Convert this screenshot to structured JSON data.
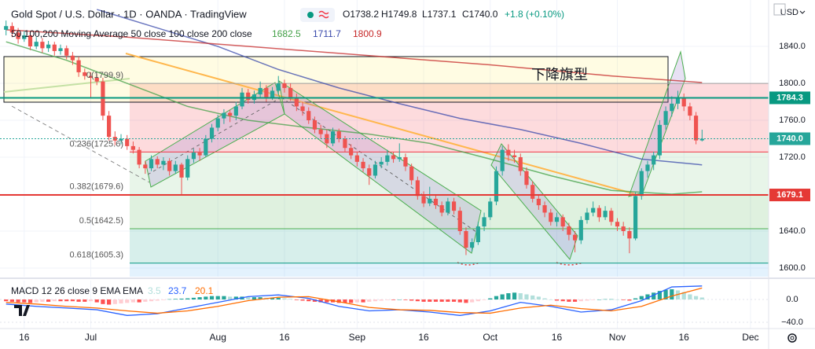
{
  "chart_data": [
    {
      "type": "candlestick",
      "title": "Gold Spot / U.S. Dollar · 1D · OANDA · TradingView",
      "ohlc_labels": [
        "O1738.2",
        "H1749.8",
        "L1737.1",
        "C1740.0"
      ],
      "change": "+1.8 (+0.10%)",
      "currency": "USD",
      "annotation": "下降旗型",
      "up_color": "#26a69a",
      "down_color": "#ef5350",
      "xlim": [
        -1,
        126
      ],
      "xticks": [
        {
          "value": 3,
          "label": "16"
        },
        {
          "value": 14,
          "label": "Jul"
        },
        {
          "value": 35,
          "label": "Aug"
        },
        {
          "value": 46,
          "label": "16"
        },
        {
          "value": 58,
          "label": "Sep"
        },
        {
          "value": 69,
          "label": "16"
        },
        {
          "value": 80,
          "label": "Oct"
        },
        {
          "value": 91,
          "label": "16"
        },
        {
          "value": 101,
          "label": "Nov"
        },
        {
          "value": 112,
          "label": "16"
        },
        {
          "value": 123,
          "label": "Dec"
        }
      ],
      "ylim": [
        1590.6,
        1886
      ],
      "yticks": [
        {
          "value": 1600,
          "label": "1600.0"
        },
        {
          "value": 1640,
          "label": "1640.0"
        },
        {
          "value": 1680,
          "label": "1680.0"
        },
        {
          "value": 1720,
          "label": "1720.0"
        },
        {
          "value": 1760,
          "label": "1760.0"
        },
        {
          "value": 1800,
          "label": "1800.0"
        },
        {
          "value": 1840,
          "label": "1840.0"
        }
      ],
      "grid": true,
      "candles": [
        [
          1858,
          1868,
          1852,
          1862
        ],
        [
          1862,
          1866,
          1850,
          1855
        ],
        [
          1855,
          1860,
          1843,
          1848
        ],
        [
          1848,
          1857,
          1845,
          1852
        ],
        [
          1852,
          1855,
          1836,
          1840
        ],
        [
          1840,
          1850,
          1837,
          1845
        ],
        [
          1845,
          1849,
          1833,
          1838
        ],
        [
          1838,
          1846,
          1834,
          1842
        ],
        [
          1842,
          1845,
          1830,
          1835
        ],
        [
          1835,
          1842,
          1831,
          1838
        ],
        [
          1838,
          1841,
          1826,
          1830
        ],
        [
          1830,
          1834,
          1820,
          1825
        ],
        [
          1825,
          1829,
          1807,
          1812
        ],
        [
          1812,
          1816,
          1804,
          1808
        ],
        [
          1808,
          1812,
          1785,
          1806
        ],
        [
          1806,
          1810,
          1798,
          1802
        ],
        [
          1802,
          1806,
          1760,
          1765
        ],
        [
          1765,
          1770,
          1738,
          1742
        ],
        [
          1742,
          1748,
          1733,
          1738
        ],
        [
          1738,
          1745,
          1734,
          1740
        ],
        [
          1740,
          1744,
          1728,
          1732
        ],
        [
          1732,
          1737,
          1724,
          1728
        ],
        [
          1728,
          1731,
          1708,
          1712
        ],
        [
          1712,
          1716,
          1702,
          1708
        ],
        [
          1708,
          1722,
          1705,
          1718
        ],
        [
          1718,
          1721,
          1708,
          1712
        ],
        [
          1712,
          1720,
          1706,
          1716
        ],
        [
          1716,
          1719,
          1700,
          1705
        ],
        [
          1705,
          1716,
          1702,
          1712
        ],
        [
          1712,
          1714,
          1680,
          1698
        ],
        [
          1698,
          1722,
          1695,
          1718
        ],
        [
          1718,
          1729,
          1714,
          1725
        ],
        [
          1725,
          1730,
          1716,
          1722
        ],
        [
          1722,
          1744,
          1720,
          1740
        ],
        [
          1740,
          1756,
          1736,
          1752
        ],
        [
          1752,
          1766,
          1748,
          1762
        ],
        [
          1762,
          1772,
          1756,
          1768
        ],
        [
          1768,
          1771,
          1758,
          1765
        ],
        [
          1765,
          1780,
          1760,
          1775
        ],
        [
          1775,
          1795,
          1772,
          1790
        ],
        [
          1790,
          1794,
          1778,
          1782
        ],
        [
          1782,
          1792,
          1778,
          1788
        ],
        [
          1788,
          1802,
          1784,
          1795
        ],
        [
          1795,
          1798,
          1780,
          1785
        ],
        [
          1785,
          1796,
          1782,
          1792
        ],
        [
          1792,
          1808,
          1788,
          1800
        ],
        [
          1800,
          1804,
          1790,
          1795
        ],
        [
          1795,
          1800,
          1781,
          1785
        ],
        [
          1785,
          1789,
          1770,
          1775
        ],
        [
          1775,
          1780,
          1765,
          1770
        ],
        [
          1770,
          1774,
          1756,
          1760
        ],
        [
          1760,
          1764,
          1746,
          1750
        ],
        [
          1750,
          1755,
          1740,
          1745
        ],
        [
          1745,
          1750,
          1730,
          1735
        ],
        [
          1735,
          1752,
          1732,
          1748
        ],
        [
          1748,
          1751,
          1736,
          1740
        ],
        [
          1740,
          1743,
          1726,
          1730
        ],
        [
          1730,
          1734,
          1718,
          1722
        ],
        [
          1722,
          1726,
          1710,
          1715
        ],
        [
          1715,
          1719,
          1704,
          1708
        ],
        [
          1708,
          1712,
          1690,
          1700
        ],
        [
          1700,
          1716,
          1697,
          1712
        ],
        [
          1712,
          1720,
          1708,
          1715
        ],
        [
          1715,
          1728,
          1711,
          1722
        ],
        [
          1722,
          1726,
          1714,
          1718
        ],
        [
          1718,
          1735,
          1715,
          1720
        ],
        [
          1720,
          1724,
          1705,
          1710
        ],
        [
          1710,
          1713,
          1690,
          1695
        ],
        [
          1695,
          1699,
          1674,
          1678
        ],
        [
          1678,
          1683,
          1666,
          1670
        ],
        [
          1670,
          1688,
          1667,
          1675
        ],
        [
          1675,
          1679,
          1664,
          1668
        ],
        [
          1668,
          1672,
          1656,
          1660
        ],
        [
          1660,
          1676,
          1657,
          1672
        ],
        [
          1672,
          1676,
          1658,
          1662
        ],
        [
          1662,
          1666,
          1636,
          1640
        ],
        [
          1640,
          1644,
          1614,
          1622
        ],
        [
          1622,
          1632,
          1618,
          1628
        ],
        [
          1628,
          1650,
          1625,
          1645
        ],
        [
          1645,
          1660,
          1640,
          1655
        ],
        [
          1655,
          1676,
          1652,
          1672
        ],
        [
          1672,
          1710,
          1668,
          1705
        ],
        [
          1705,
          1732,
          1700,
          1728
        ],
        [
          1728,
          1734,
          1716,
          1722
        ],
        [
          1722,
          1728,
          1714,
          1720
        ],
        [
          1720,
          1724,
          1700,
          1705
        ],
        [
          1705,
          1709,
          1686,
          1690
        ],
        [
          1690,
          1694,
          1671,
          1675
        ],
        [
          1675,
          1679,
          1663,
          1668
        ],
        [
          1668,
          1672,
          1655,
          1660
        ],
        [
          1660,
          1664,
          1646,
          1650
        ],
        [
          1650,
          1660,
          1645,
          1655
        ],
        [
          1655,
          1658,
          1640,
          1645
        ],
        [
          1645,
          1649,
          1630,
          1636
        ],
        [
          1636,
          1640,
          1617,
          1630
        ],
        [
          1630,
          1656,
          1626,
          1652
        ],
        [
          1652,
          1665,
          1648,
          1660
        ],
        [
          1660,
          1672,
          1656,
          1665
        ],
        [
          1665,
          1668,
          1650,
          1655
        ],
        [
          1655,
          1667,
          1652,
          1662
        ],
        [
          1662,
          1665,
          1646,
          1650
        ],
        [
          1650,
          1654,
          1640,
          1645
        ],
        [
          1645,
          1650,
          1635,
          1640
        ],
        [
          1640,
          1644,
          1616,
          1632
        ],
        [
          1632,
          1682,
          1630,
          1678
        ],
        [
          1678,
          1708,
          1674,
          1705
        ],
        [
          1705,
          1716,
          1698,
          1712
        ],
        [
          1712,
          1726,
          1706,
          1722
        ],
        [
          1722,
          1760,
          1718,
          1755
        ],
        [
          1755,
          1775,
          1750,
          1770
        ],
        [
          1770,
          1786,
          1764,
          1778
        ],
        [
          1778,
          1792,
          1772,
          1785
        ],
        [
          1785,
          1789,
          1770,
          1775
        ],
        [
          1775,
          1779,
          1760,
          1765
        ],
        [
          1765,
          1769,
          1734,
          1738.2
        ],
        [
          1738.2,
          1749.8,
          1737.1,
          1740.0
        ]
      ],
      "moving_averages": {
        "title": "50,100,200 Moving Average 50 close 100 close 200 close",
        "series": [
          {
            "color": "#43a047",
            "x": [
              0,
              10,
              20,
              30,
              40,
              50,
              60,
              70,
              80,
              90,
              100,
              110,
              115
            ],
            "values": [
              1845,
              1825,
              1800,
              1775,
              1760,
              1752,
              1745,
              1735,
              1718,
              1700,
              1684,
              1680,
              1682.5
            ]
          },
          {
            "color": "#3949ab",
            "x": [
              15,
              25,
              35,
              45,
              55,
              65,
              75,
              85,
              95,
              105,
              115
            ],
            "values": [
              1880,
              1860,
              1840,
              1815,
              1795,
              1778,
              1762,
              1750,
              1735,
              1718,
              1711.7
            ]
          },
          {
            "color": "#c62828",
            "x": [
              0,
              20,
              40,
              60,
              80,
              100,
              115
            ],
            "values": [
              1858,
              1850,
              1840,
              1830,
              1820,
              1808,
              1800.9
            ]
          }
        ]
      },
      "fib_levels": [
        {
          "label": "0(1799.9)",
          "value": 1799.9,
          "color": "#9e9e9e",
          "fill": "rgba(242,54,69,0.18)"
        },
        {
          "label": "0.236(1725.6)",
          "value": 1725.6,
          "color": "#f23645",
          "fill": "rgba(129,199,132,0.18)"
        },
        {
          "label": "0.382(1679.6)",
          "value": 1679.6,
          "color": "#81c784",
          "fill": "rgba(76,175,80,0.18)"
        },
        {
          "label": "0.5(1642.5)",
          "value": 1642.5,
          "color": "#4caf50",
          "fill": "rgba(8,153,129,0.16)"
        },
        {
          "label": "0.618(1605.3)",
          "value": 1605.3,
          "color": "#089981",
          "fill": "rgba(100,181,246,0.18)"
        }
      ],
      "price_lines": [
        {
          "value": 1784.3,
          "label": "1784.3",
          "color": "#089981"
        },
        {
          "value": 1740,
          "label": "1740.0",
          "color": "#26a69a"
        },
        {
          "value": 1679.1,
          "label": "1679.1",
          "color": "#e53935"
        }
      ]
    },
    {
      "type": "macd",
      "title": "MACD 12 26 close 9 EMA EMA",
      "ylim": [
        -51,
        33.1
      ],
      "yticks": [
        {
          "value": 0,
          "label": "0.0"
        },
        {
          "value": -40,
          "label": "−40.0"
        }
      ],
      "histogram_colors": {
        "rising_above": "#26a69a",
        "falling_above": "#b2dfdb",
        "rising_below": "#ffcdd2",
        "falling_below": "#ff5252"
      },
      "histogram": [
        -3,
        -4,
        -5,
        -5,
        -6,
        -5,
        -4,
        -4,
        -3,
        -3,
        -3,
        -3,
        -4,
        -4,
        -3,
        -5,
        -8,
        -9,
        -8,
        -7,
        -6,
        -5,
        -5,
        -4,
        -3,
        -2,
        -1,
        0.5,
        1,
        1.5,
        2,
        3,
        4,
        5,
        6,
        6,
        6,
        5,
        5,
        5,
        4,
        4,
        4,
        3,
        3,
        3,
        2,
        1,
        -1,
        -2,
        -3,
        -4,
        -5,
        -5,
        -5,
        -6,
        -6,
        -6,
        -5,
        -5,
        -4,
        -3,
        -2,
        -1,
        -1,
        0,
        -1,
        -2,
        -3,
        -4,
        -4,
        -4,
        -4,
        -4,
        -4,
        -5,
        -6,
        -5,
        -3,
        -1,
        2,
        6,
        9,
        11,
        12,
        11,
        9,
        7,
        5,
        2,
        0,
        -2,
        -3,
        -4,
        -4,
        -3,
        -2,
        -1,
        0,
        0.5,
        0.5,
        0,
        -1,
        -2,
        2,
        6,
        9,
        12,
        15,
        17,
        18,
        16,
        13,
        9,
        6,
        3.5
      ],
      "lines": [
        {
          "color": "#2962ff",
          "x": [
            0,
            5,
            10,
            15,
            20,
            25,
            30,
            35,
            40,
            45,
            50,
            55,
            60,
            65,
            70,
            75,
            80,
            85,
            90,
            95,
            100,
            105,
            110,
            115
          ],
          "values": [
            -8,
            -12,
            -15,
            -18,
            -28,
            -25,
            -15,
            -5,
            5,
            8,
            2,
            -12,
            -20,
            -18,
            -22,
            -28,
            -20,
            -5,
            -12,
            -22,
            -18,
            -2,
            22,
            23.7
          ]
        },
        {
          "color": "#ff6d00",
          "x": [
            0,
            5,
            10,
            15,
            20,
            25,
            30,
            35,
            40,
            45,
            50,
            55,
            60,
            65,
            70,
            75,
            80,
            85,
            90,
            95,
            100,
            105,
            110,
            115
          ],
          "values": [
            -5,
            -8,
            -12,
            -15,
            -20,
            -24,
            -20,
            -12,
            -2,
            4,
            5,
            -4,
            -14,
            -18,
            -19,
            -23,
            -24,
            -15,
            -10,
            -16,
            -20,
            -12,
            6,
            20.1
          ]
        }
      ]
    }
  ]
}
